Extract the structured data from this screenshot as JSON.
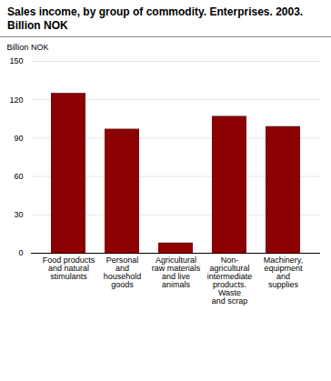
{
  "chart_data": {
    "type": "bar",
    "title": "Sales income, by group of commodity. Enterprises. 2003.",
    "subtitle": "Billion NOK",
    "ylabel": "Billion NOK",
    "categories": [
      "Food products\nand natural\nstimulants",
      "Personal\nand\nhousehold\ngoods",
      "Agricultural\nraw materials\nand live\nanimals",
      "Non-\nagricultural\nintermediate\nproducts.\nWaste\nand scrap",
      "Machinery,\nequipment\nand\nsupplies"
    ],
    "values": [
      125,
      97,
      8,
      107,
      99
    ],
    "color": "#8B0000",
    "ylim": [
      0,
      150
    ],
    "yticks": [
      0,
      30,
      60,
      90,
      120,
      150
    ],
    "grid": true
  }
}
